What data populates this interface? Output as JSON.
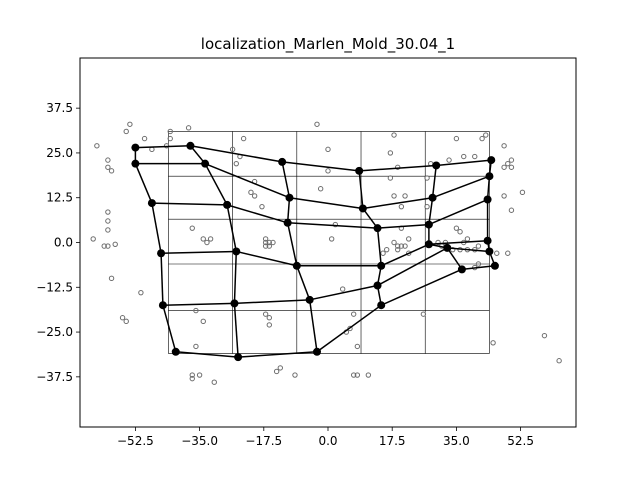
{
  "chart_data": {
    "type": "scatter",
    "title": "localization_Marlen_Mold_30.04_1",
    "xlabel": "",
    "ylabel": "",
    "xlim": [
      -67.6,
      67.6
    ],
    "ylim": [
      -51.5,
      51.5
    ],
    "xticks": [
      -52.5,
      -35.0,
      -17.5,
      0.0,
      17.5,
      35.0,
      52.5
    ],
    "xtick_labels": [
      "−52.5",
      "−35.0",
      "−17.5",
      "0.0",
      "17.5",
      "35.0",
      "52.5"
    ],
    "yticks": [
      -37.5,
      -25.0,
      -12.5,
      0.0,
      12.5,
      25.0,
      37.5
    ],
    "ytick_labels": [
      "−37.5",
      "−25.0",
      "−12.5",
      "0.0",
      "12.5",
      "25.0",
      "37.5"
    ],
    "legend": "none",
    "grid": {
      "x_lines": [
        -43.5,
        -26.0,
        -8.5,
        9.0,
        26.5,
        44.0
      ],
      "y_lines": [
        -31.0,
        -19.0,
        -6.0,
        6.5,
        18.5,
        31.0
      ],
      "x_range": [
        -43.5,
        44.0
      ],
      "y_range": [
        -31.0,
        31.0
      ]
    },
    "mesh": {
      "nodes": [
        [
          -52.5,
          26.5
        ],
        [
          -37.5,
          27.0
        ],
        [
          -12.5,
          22.5
        ],
        [
          8.5,
          20.0
        ],
        [
          29.5,
          21.5
        ],
        [
          44.5,
          23.0
        ],
        [
          -52.5,
          22.0
        ],
        [
          -33.5,
          22.0
        ],
        [
          -10.5,
          12.5
        ],
        [
          9.5,
          9.5
        ],
        [
          28.5,
          12.5
        ],
        [
          43.5,
          12.0
        ],
        [
          -48.0,
          11.0
        ],
        [
          -27.5,
          10.5
        ],
        [
          -11.0,
          5.5
        ],
        [
          13.5,
          4.0
        ],
        [
          27.5,
          5.0
        ],
        [
          43.5,
          0.5
        ],
        [
          -45.5,
          -3.0
        ],
        [
          -25.0,
          -2.5
        ],
        [
          -8.5,
          -6.5
        ],
        [
          14.5,
          -6.5
        ],
        [
          27.5,
          -0.5
        ],
        [
          44.0,
          -2.5
        ],
        [
          -45.0,
          -17.5
        ],
        [
          -25.5,
          -17.0
        ],
        [
          -5.0,
          -16.0
        ],
        [
          13.5,
          -12.0
        ],
        [
          32.5,
          -1.5
        ],
        [
          45.5,
          -6.5
        ],
        [
          -41.5,
          -30.5
        ],
        [
          -24.5,
          -32.0
        ],
        [
          -3.0,
          -30.5
        ],
        [
          14.5,
          -17.5
        ],
        [
          36.5,
          -7.5
        ],
        [
          44.0,
          18.5
        ]
      ],
      "edges": [
        [
          0,
          1
        ],
        [
          1,
          2
        ],
        [
          2,
          3
        ],
        [
          3,
          4
        ],
        [
          4,
          5
        ],
        [
          6,
          7
        ],
        [
          7,
          8
        ],
        [
          8,
          9
        ],
        [
          9,
          10
        ],
        [
          10,
          35
        ],
        [
          12,
          13
        ],
        [
          13,
          14
        ],
        [
          14,
          15
        ],
        [
          15,
          16
        ],
        [
          16,
          11
        ],
        [
          18,
          19
        ],
        [
          19,
          20
        ],
        [
          20,
          21
        ],
        [
          21,
          22
        ],
        [
          22,
          17
        ],
        [
          24,
          25
        ],
        [
          25,
          26
        ],
        [
          26,
          27
        ],
        [
          27,
          28
        ],
        [
          28,
          23
        ],
        [
          30,
          31
        ],
        [
          31,
          32
        ],
        [
          32,
          33
        ],
        [
          33,
          34
        ],
        [
          34,
          29
        ],
        [
          0,
          6
        ],
        [
          6,
          12
        ],
        [
          12,
          18
        ],
        [
          18,
          24
        ],
        [
          24,
          30
        ],
        [
          1,
          7
        ],
        [
          7,
          13
        ],
        [
          13,
          19
        ],
        [
          19,
          25
        ],
        [
          25,
          31
        ],
        [
          2,
          8
        ],
        [
          8,
          14
        ],
        [
          14,
          20
        ],
        [
          20,
          26
        ],
        [
          26,
          32
        ],
        [
          3,
          9
        ],
        [
          9,
          15
        ],
        [
          15,
          21
        ],
        [
          21,
          27
        ],
        [
          27,
          33
        ],
        [
          4,
          10
        ],
        [
          10,
          16
        ],
        [
          16,
          22
        ],
        [
          22,
          28
        ],
        [
          28,
          34
        ],
        [
          5,
          35
        ],
        [
          35,
          11
        ],
        [
          11,
          17
        ],
        [
          17,
          23
        ],
        [
          23,
          29
        ]
      ]
    },
    "scatter_points": [
      [
        -63,
        27
      ],
      [
        -60,
        23
      ],
      [
        -59,
        20
      ],
      [
        -60,
        21
      ],
      [
        -55,
        31
      ],
      [
        -54,
        33
      ],
      [
        -50,
        29
      ],
      [
        -48,
        26
      ],
      [
        -44,
        27
      ],
      [
        -43,
        29
      ],
      [
        -43,
        31
      ],
      [
        -38,
        32
      ],
      [
        -60,
        8.5
      ],
      [
        -60,
        6
      ],
      [
        -60,
        3.5
      ],
      [
        -64,
        1
      ],
      [
        -60,
        -1
      ],
      [
        -58,
        -0.5
      ],
      [
        -61,
        -1
      ],
      [
        -59,
        -10
      ],
      [
        -51,
        -14
      ],
      [
        -56,
        -21
      ],
      [
        -55,
        -22
      ],
      [
        -37,
        4
      ],
      [
        -34,
        1
      ],
      [
        -33,
        0
      ],
      [
        -32,
        1
      ],
      [
        -26,
        26
      ],
      [
        -25,
        22
      ],
      [
        -24,
        24
      ],
      [
        -23,
        29
      ],
      [
        -21,
        14
      ],
      [
        -20,
        13
      ],
      [
        -20,
        17
      ],
      [
        -18,
        10
      ],
      [
        -17,
        0
      ],
      [
        -16,
        0
      ],
      [
        -17,
        -1
      ],
      [
        -16,
        -1
      ],
      [
        -15,
        0
      ],
      [
        -17,
        1
      ],
      [
        -17,
        -20
      ],
      [
        -16,
        -21
      ],
      [
        -16,
        -23
      ],
      [
        -36,
        -19
      ],
      [
        -34,
        -22
      ],
      [
        -36,
        -29
      ],
      [
        -37,
        -37
      ],
      [
        -37,
        -38
      ],
      [
        -35,
        -37
      ],
      [
        -31,
        -39
      ],
      [
        -14,
        -36
      ],
      [
        -13,
        -35
      ],
      [
        -9,
        -37
      ],
      [
        -3,
        33
      ],
      [
        0,
        26
      ],
      [
        -2,
        15
      ],
      [
        0,
        20
      ],
      [
        1,
        1
      ],
      [
        2,
        5
      ],
      [
        4,
        -13
      ],
      [
        5,
        -25
      ],
      [
        6,
        -24
      ],
      [
        7,
        -20
      ],
      [
        8,
        -29
      ],
      [
        7,
        -37
      ],
      [
        8,
        -37
      ],
      [
        11,
        -37
      ],
      [
        18,
        30
      ],
      [
        17,
        25
      ],
      [
        17,
        18
      ],
      [
        19,
        21
      ],
      [
        18,
        13
      ],
      [
        21,
        13
      ],
      [
        20,
        10
      ],
      [
        18,
        0
      ],
      [
        19,
        -1
      ],
      [
        20,
        -1
      ],
      [
        19,
        -2
      ],
      [
        21,
        -1
      ],
      [
        22,
        1
      ],
      [
        22,
        -3
      ],
      [
        20,
        4
      ],
      [
        15,
        -3
      ],
      [
        16,
        -2
      ],
      [
        27,
        18
      ],
      [
        27,
        10
      ],
      [
        28,
        22
      ],
      [
        26,
        -20
      ],
      [
        35,
        29
      ],
      [
        37,
        24
      ],
      [
        40,
        24
      ],
      [
        35,
        4
      ],
      [
        36,
        3
      ],
      [
        37,
        0
      ],
      [
        38,
        1
      ],
      [
        36,
        -2
      ],
      [
        38,
        -2
      ],
      [
        40,
        -2
      ],
      [
        41,
        -1
      ],
      [
        42,
        29
      ],
      [
        43,
        30
      ],
      [
        48,
        13
      ],
      [
        48,
        27
      ],
      [
        48,
        21
      ],
      [
        49,
        22
      ],
      [
        50,
        23
      ],
      [
        50,
        21
      ],
      [
        50,
        9
      ],
      [
        49,
        -3
      ],
      [
        46,
        -3
      ],
      [
        53,
        14
      ],
      [
        45,
        -28
      ],
      [
        59,
        -26
      ],
      [
        63,
        -33
      ],
      [
        41,
        -6
      ],
      [
        40,
        -7
      ],
      [
        33,
        23
      ],
      [
        32,
        0
      ],
      [
        30,
        0
      ],
      [
        31,
        -1
      ],
      [
        34,
        -2
      ]
    ]
  }
}
